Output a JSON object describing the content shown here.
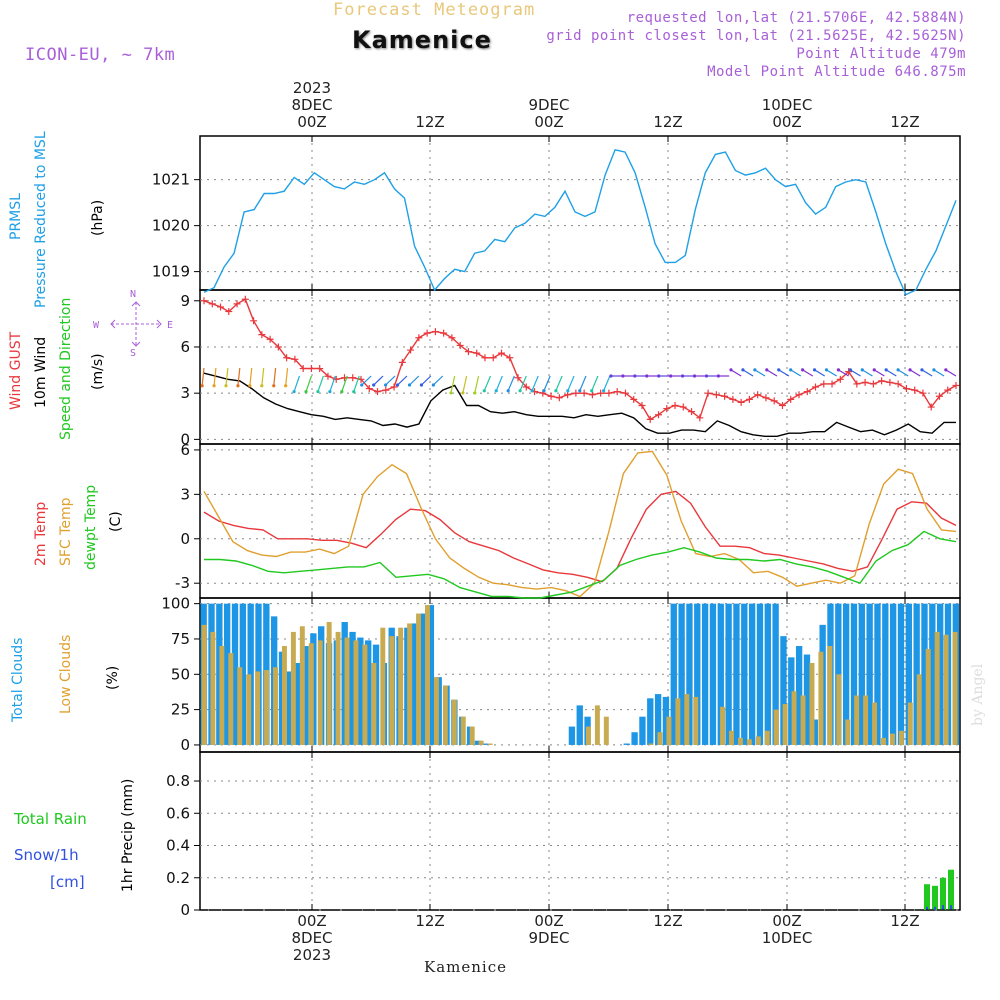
{
  "header": {
    "faded_title": "Forecast Meteogram",
    "location": "Kamenice",
    "model": "ICON-EU, ~ 7km",
    "requested": "requested lon,lat (21.5706E, 42.5884N)",
    "gridpoint": "grid point closest lon,lat (21.5625E, 42.5625N)",
    "point_alt": "Point Altitude 479m",
    "model_alt": "Model Point Altitude 646.875m",
    "footer_location": "Kamenice",
    "signature": "by Angel"
  },
  "time_axis": {
    "top": [
      {
        "lines": [
          "2023",
          "8DEC",
          "00Z"
        ]
      },
      {
        "lines": [
          "12Z"
        ]
      },
      {
        "lines": [
          "9DEC",
          "00Z"
        ]
      },
      {
        "lines": [
          "12Z"
        ]
      },
      {
        "lines": [
          "10DEC",
          "00Z"
        ]
      },
      {
        "lines": [
          "12Z"
        ]
      }
    ],
    "bottom": [
      {
        "lines": [
          "00Z",
          "8DEC",
          "2023"
        ]
      },
      {
        "lines": [
          "12Z"
        ]
      },
      {
        "lines": [
          "00Z",
          "9DEC"
        ]
      },
      {
        "lines": [
          "12Z"
        ]
      },
      {
        "lines": [
          "00Z",
          "10DEC"
        ]
      },
      {
        "lines": [
          "12Z"
        ]
      }
    ]
  },
  "colors": {
    "pressure": "#1ea0e6",
    "gust": "#e8383c",
    "wind": "#000000",
    "temp2m": "#e8383c",
    "sfc": "#e0a030",
    "dew": "#20c820",
    "total_cloud": "#1e96e6",
    "low_cloud": "#c8aa50",
    "rain": "#20c820",
    "snow": "#3050e0",
    "purple": "#a860d8"
  },
  "panels": {
    "pressure": {
      "labels": [
        {
          "text": "PRMSL",
          "color": "#1ea0e6"
        },
        {
          "text": "Pressure Reduced to MSL",
          "color": "#1ea0e6"
        },
        {
          "text": "(hPa)",
          "color": "#000000"
        }
      ]
    },
    "wind": {
      "labels": [
        {
          "text": "Wind GUST",
          "color": "#e8383c"
        },
        {
          "text": "10m Wind",
          "color": "#000000"
        },
        {
          "text": "Speed and Direction",
          "color": "#20c820"
        },
        {
          "text": "(m/s)",
          "color": "#000000"
        }
      ],
      "compass": {
        "n": "N",
        "s": "S",
        "w": "W",
        "e": "E"
      }
    },
    "temp": {
      "labels": [
        {
          "text": "2m Temp",
          "color": "#e8383c"
        },
        {
          "text": "SFC Temp",
          "color": "#e0a030"
        },
        {
          "text": "dewpt Temp",
          "color": "#20c820"
        },
        {
          "text": "(C)",
          "color": "#000000"
        }
      ]
    },
    "cloud": {
      "labels": [
        {
          "text": "Total Clouds",
          "color": "#1ea0e6"
        },
        {
          "text": "Low Clouds",
          "color": "#e0a030"
        },
        {
          "text": "(%)",
          "color": "#000000"
        }
      ]
    },
    "precip": {
      "side_labels": [
        {
          "text": "Total  Rain",
          "color": "#20c820"
        },
        {
          "text": "Snow/1h",
          "color": "#3050e0"
        },
        {
          "text": "[cm]",
          "color": "#3050e0"
        }
      ],
      "ylabel": "1hr Precip (mm)"
    }
  },
  "chart_data": [
    {
      "type": "line",
      "title": "PRMSL Pressure Reduced to MSL",
      "ylabel": "(hPa)",
      "x": "forecast hour 0-64",
      "ylim": [
        1018.6,
        1021.95
      ],
      "yticks": [
        1019,
        1020,
        1021
      ],
      "series": [
        {
          "name": "PRMSL",
          "color": "#1ea0e6",
          "values": [
            1018.55,
            1018.65,
            1019.1,
            1019.4,
            1020.3,
            1020.35,
            1020.7,
            1020.7,
            1020.75,
            1021.05,
            1020.9,
            1021.15,
            1021.0,
            1020.85,
            1020.8,
            1020.95,
            1020.9,
            1021.0,
            1021.15,
            1020.8,
            1020.6,
            1019.55,
            1019.1,
            1018.6,
            1018.85,
            1019.05,
            1019.0,
            1019.4,
            1019.45,
            1019.7,
            1019.65,
            1019.95,
            1020.05,
            1020.25,
            1020.2,
            1020.4,
            1020.75,
            1020.3,
            1020.2,
            1020.3,
            1021.1,
            1021.65,
            1021.6,
            1021.15,
            1020.4,
            1019.6,
            1019.2,
            1019.2,
            1019.35,
            1020.35,
            1021.15,
            1021.55,
            1021.6,
            1021.2,
            1021.1,
            1021.15,
            1021.25,
            1021.0,
            1020.85,
            1020.9,
            1020.5,
            1020.25,
            1020.4,
            1020.85,
            1020.95,
            1021.0,
            1020.95,
            1020.3,
            1019.6,
            1019.0,
            1018.5,
            1018.6,
            1019.05,
            1019.45,
            1020.0,
            1020.55
          ]
        }
      ]
    },
    {
      "type": "line",
      "title": "Wind GUST / 10m Wind Speed and Direction",
      "ylabel": "(m/s)",
      "ylim": [
        -0.3,
        9.7
      ],
      "yticks": [
        0,
        3,
        6,
        9
      ],
      "series": [
        {
          "name": "Wind GUST",
          "color": "#e8383c",
          "values": [
            9.0,
            8.8,
            8.6,
            8.3,
            8.8,
            9.1,
            7.7,
            6.8,
            6.5,
            6.0,
            5.3,
            5.2,
            4.6,
            4.6,
            4.6,
            4.1,
            3.9,
            4.0,
            4.0,
            3.9,
            3.3,
            3.1,
            3.2,
            3.4,
            5.0,
            5.8,
            6.6,
            6.9,
            7.0,
            6.9,
            6.6,
            6.1,
            5.7,
            5.6,
            5.3,
            5.3,
            5.6,
            5.3,
            4.0,
            3.4,
            3.1,
            3.0,
            2.8,
            2.7,
            2.9,
            3.0,
            3.0,
            2.9,
            3.0,
            3.0,
            3.1,
            3.0,
            2.6,
            2.2,
            1.3,
            1.6,
            2.0,
            2.2,
            2.1,
            1.8,
            1.4,
            3.0,
            2.9,
            2.8,
            2.6,
            2.4,
            2.6,
            2.9,
            2.7,
            2.5,
            2.2,
            2.6,
            2.9,
            3.1,
            3.4,
            3.6,
            3.6,
            3.9,
            4.4,
            3.6,
            3.7,
            3.6,
            3.8,
            3.7,
            3.6,
            3.3,
            3.2,
            3.0,
            2.1,
            2.8,
            3.2,
            3.5
          ]
        },
        {
          "name": "10m Wind",
          "color": "#000000",
          "values": [
            4.3,
            4.1,
            3.9,
            3.8,
            3.3,
            2.7,
            2.3,
            2.0,
            1.8,
            1.6,
            1.5,
            1.3,
            1.4,
            1.3,
            1.2,
            0.9,
            1.0,
            0.8,
            1.0,
            2.5,
            3.2,
            3.5,
            2.2,
            2.2,
            1.8,
            1.7,
            1.8,
            1.6,
            1.5,
            1.5,
            1.5,
            1.4,
            1.6,
            1.5,
            1.6,
            1.7,
            1.4,
            0.7,
            0.4,
            0.4,
            0.6,
            0.6,
            0.5,
            1.2,
            0.9,
            0.5,
            0.3,
            0.2,
            0.2,
            0.4,
            0.4,
            0.5,
            0.5,
            1.1,
            0.8,
            0.5,
            0.6,
            0.3,
            0.6,
            1.0,
            0.5,
            0.4,
            1.1,
            1.1
          ]
        }
      ]
    },
    {
      "type": "line",
      "title": "2m Temp / SFC Temp / dewpt Temp",
      "ylabel": "(C)",
      "ylim": [
        -4.0,
        6.4
      ],
      "yticks": [
        -3,
        0,
        3,
        6
      ],
      "series": [
        {
          "name": "2m Temp",
          "color": "#e8383c",
          "values": [
            1.8,
            1.2,
            0.9,
            0.7,
            0.6,
            0.0,
            0.0,
            0.0,
            -0.1,
            -0.1,
            -0.3,
            -0.6,
            0.3,
            1.3,
            2.0,
            1.9,
            1.3,
            0.4,
            -0.2,
            -0.5,
            -0.8,
            -1.3,
            -1.7,
            -2.1,
            -2.3,
            -2.4,
            -2.6,
            -2.9,
            -2.0,
            0.1,
            2.0,
            3.0,
            3.2,
            2.4,
            0.8,
            -0.5,
            -0.5,
            -0.6,
            -1.0,
            -1.1,
            -1.3,
            -1.5,
            -1.7,
            -2.0,
            -2.2,
            -1.9,
            0.0,
            2.0,
            2.5,
            2.4,
            1.4,
            0.9
          ]
        },
        {
          "name": "SFC Temp",
          "color": "#e0a030",
          "values": [
            3.2,
            1.5,
            -0.2,
            -0.8,
            -1.1,
            -1.2,
            -0.9,
            -0.9,
            -0.7,
            -1.0,
            -0.5,
            3.0,
            4.2,
            5.0,
            4.4,
            2.1,
            0.0,
            -1.3,
            -2.0,
            -2.6,
            -3.0,
            -3.1,
            -3.3,
            -3.4,
            -3.3,
            -3.5,
            -3.9,
            -3.0,
            0.5,
            4.4,
            5.8,
            5.9,
            4.3,
            1.2,
            -1.0,
            -1.2,
            -1.0,
            -1.4,
            -2.3,
            -2.2,
            -2.6,
            -3.2,
            -3.0,
            -2.8,
            -3.0,
            -2.5,
            1.0,
            3.7,
            4.7,
            4.4,
            2.0,
            0.6,
            0.5
          ]
        },
        {
          "name": "dewpt Temp",
          "color": "#20c820",
          "values": [
            -1.4,
            -1.4,
            -1.5,
            -1.8,
            -2.2,
            -2.3,
            -2.2,
            -2.1,
            -2.0,
            -1.9,
            -1.9,
            -1.6,
            -2.6,
            -2.5,
            -2.4,
            -2.7,
            -3.3,
            -3.6,
            -3.9,
            -3.9,
            -4.0,
            -4.0,
            -3.8,
            -3.6,
            -3.2,
            -2.8,
            -1.8,
            -1.4,
            -1.1,
            -0.9,
            -0.6,
            -0.9,
            -1.3,
            -1.4,
            -1.4,
            -1.5,
            -1.4,
            -1.7,
            -1.9,
            -2.2,
            -2.6,
            -3.0,
            -1.5,
            -0.8,
            -0.4,
            0.5,
            0.0,
            -0.2
          ]
        }
      ]
    },
    {
      "type": "bar",
      "title": "Total Clouds / Low Clouds",
      "ylabel": "(%)",
      "ylim": [
        -5,
        104
      ],
      "yticks": [
        0,
        25,
        50,
        75,
        100
      ],
      "series": [
        {
          "name": "Total Clouds",
          "color": "#1e96e6",
          "values": [
            100,
            100,
            100,
            100,
            100,
            100,
            100,
            100,
            100,
            91,
            66,
            52,
            58,
            70,
            79,
            84,
            72,
            74,
            87,
            80,
            76,
            74,
            71,
            58,
            83,
            77,
            83,
            86,
            93,
            99,
            48,
            42,
            32,
            20,
            13,
            3,
            1,
            0,
            0,
            0,
            0,
            0,
            0,
            0,
            0,
            0,
            0,
            13,
            28,
            20,
            0,
            0,
            0,
            0,
            1,
            9,
            20,
            33,
            36,
            34,
            100,
            100,
            100,
            100,
            100,
            100,
            100,
            100,
            100,
            100,
            100,
            100,
            100,
            100,
            77,
            62,
            70,
            64,
            18,
            85,
            100,
            100,
            100,
            100,
            100,
            100,
            100,
            100,
            100,
            100,
            100,
            100,
            100,
            100,
            100,
            100,
            100
          ]
        },
        {
          "name": "Low Clouds",
          "color": "#c8aa50",
          "values": [
            85,
            80,
            70,
            65,
            55,
            50,
            52,
            53,
            55,
            70,
            80,
            84,
            72,
            74,
            87,
            80,
            76,
            74,
            71,
            58,
            83,
            77,
            83,
            86,
            93,
            99,
            48,
            42,
            32,
            20,
            13,
            3,
            1,
            0,
            0,
            0,
            0,
            0,
            0,
            0,
            0,
            0,
            0,
            13,
            28,
            20,
            0,
            0,
            0,
            0,
            1,
            9,
            20,
            33,
            36,
            34,
            0,
            0,
            27,
            10,
            5,
            4,
            6,
            10,
            25,
            29,
            38,
            35,
            58,
            66,
            70,
            50,
            18,
            35,
            35,
            30,
            5,
            8,
            10,
            30,
            50,
            68,
            80,
            78,
            80
          ]
        }
      ]
    },
    {
      "type": "bar",
      "title": "Total Rain / Snow/1h",
      "ylabel": "1hr Precip (mm)",
      "ylim": [
        0,
        0.98
      ],
      "yticks": [
        0,
        0.2,
        0.4,
        0.6,
        0.8
      ],
      "series": [
        {
          "name": "Total Rain",
          "color": "#20c820",
          "values": [
            0.16,
            0.15,
            0.2,
            0.25
          ]
        },
        {
          "name": "Snow/1h",
          "color": "#3050e0",
          "values": [
            0.02,
            0.02,
            0.03,
            0.03
          ]
        }
      ]
    }
  ]
}
